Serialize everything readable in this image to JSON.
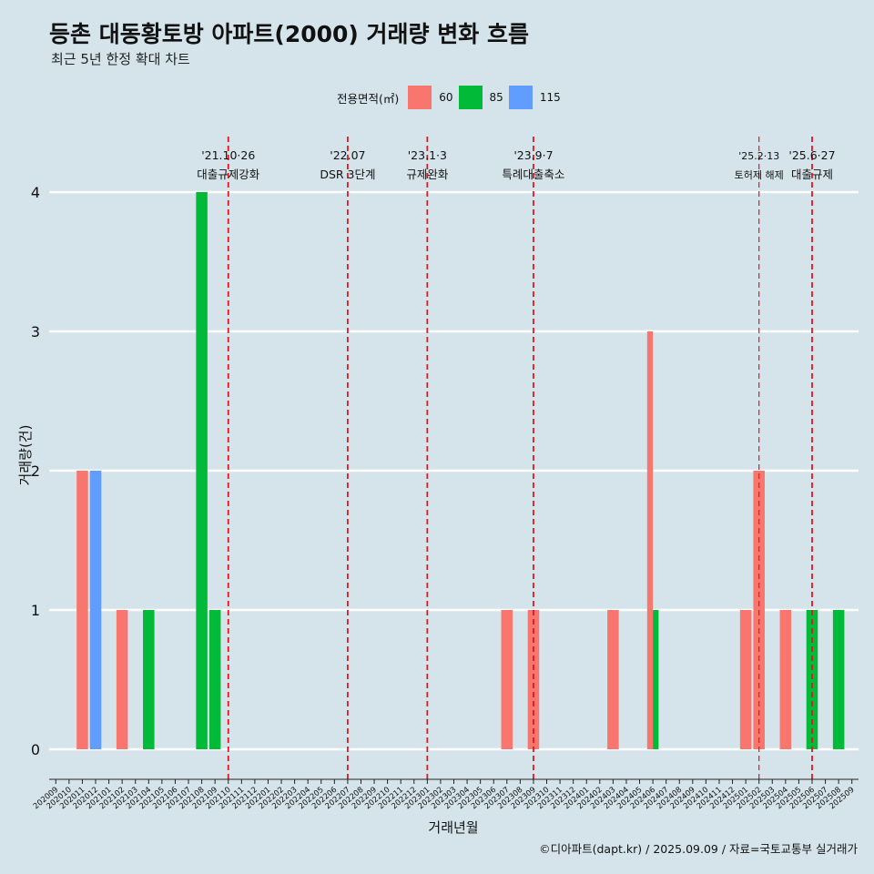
{
  "title": "등촌 대동황토방 아파트(2000) 거래량 변화 흐름",
  "subtitle": "최근 5년 한정 확대 차트",
  "credit": "©디아파트(dapt.kr) / 2025.09.09 / 자료=국토교통부 실거래가",
  "legend": {
    "title": "전용면적(㎡)",
    "items": [
      {
        "label": "60",
        "color": "#f8766d"
      },
      {
        "label": "85",
        "color": "#00ba38"
      },
      {
        "label": "115",
        "color": "#619cff"
      }
    ]
  },
  "chart_data": {
    "type": "bar",
    "title": "등촌 대동황토방 아파트(2000) 거래량 변화 흐름",
    "xlabel": "거래년월",
    "ylabel": "거래량(건)",
    "ylim": [
      0,
      4
    ],
    "yticks": [
      0,
      1,
      2,
      3,
      4
    ],
    "categories": [
      "202009",
      "202010",
      "202011",
      "202012",
      "202101",
      "202102",
      "202103",
      "202104",
      "202105",
      "202106",
      "202107",
      "202108",
      "202109",
      "202110",
      "202111",
      "202112",
      "202201",
      "202202",
      "202203",
      "202204",
      "202205",
      "202206",
      "202207",
      "202208",
      "202209",
      "202210",
      "202211",
      "202212",
      "202301",
      "202302",
      "202303",
      "202304",
      "202305",
      "202306",
      "202307",
      "202308",
      "202309",
      "202310",
      "202311",
      "202312",
      "202401",
      "202402",
      "202403",
      "202404",
      "202405",
      "202406",
      "202407",
      "202408",
      "202409",
      "202410",
      "202411",
      "202412",
      "202501",
      "202502",
      "202503",
      "202504",
      "202505",
      "202506",
      "202507",
      "202508",
      "202509"
    ],
    "series": [
      {
        "name": "60",
        "color": "#f8766d",
        "points": [
          {
            "x": "202011",
            "y": 2
          },
          {
            "x": "202102",
            "y": 1
          },
          {
            "x": "202307",
            "y": 1
          },
          {
            "x": "202309",
            "y": 1
          },
          {
            "x": "202403",
            "y": 1
          },
          {
            "x": "202406",
            "y": 3
          },
          {
            "x": "202501",
            "y": 1
          },
          {
            "x": "202502",
            "y": 2
          },
          {
            "x": "202504",
            "y": 1
          }
        ]
      },
      {
        "name": "85",
        "color": "#00ba38",
        "points": [
          {
            "x": "202104",
            "y": 1
          },
          {
            "x": "202108",
            "y": 4
          },
          {
            "x": "202109",
            "y": 1
          },
          {
            "x": "202406",
            "y": 1
          },
          {
            "x": "202506",
            "y": 1
          },
          {
            "x": "202508",
            "y": 1
          }
        ]
      },
      {
        "name": "115",
        "color": "#619cff",
        "points": [
          {
            "x": "202012",
            "y": 2
          }
        ]
      }
    ],
    "bar_groups": [
      {
        "x": "202011",
        "segs": [
          {
            "s": "60",
            "y": 2
          }
        ]
      },
      {
        "x": "202012",
        "segs": [
          {
            "s": "115",
            "y": 2
          }
        ]
      },
      {
        "x": "202102",
        "segs": [
          {
            "s": "60",
            "y": 1
          }
        ]
      },
      {
        "x": "202104",
        "segs": [
          {
            "s": "85",
            "y": 1
          }
        ]
      },
      {
        "x": "202108",
        "segs": [
          {
            "s": "85",
            "y": 4
          }
        ]
      },
      {
        "x": "202109",
        "segs": [
          {
            "s": "85",
            "y": 1
          }
        ]
      },
      {
        "x": "202307",
        "segs": [
          {
            "s": "60",
            "y": 1
          }
        ]
      },
      {
        "x": "202309",
        "segs": [
          {
            "s": "60",
            "y": 1
          }
        ]
      },
      {
        "x": "202403",
        "segs": [
          {
            "s": "60",
            "y": 1
          }
        ]
      },
      {
        "x": "202406",
        "segs": [
          {
            "s": "60",
            "y": 3
          },
          {
            "s": "85",
            "y": 1
          }
        ]
      },
      {
        "x": "202501",
        "segs": [
          {
            "s": "60",
            "y": 1
          }
        ]
      },
      {
        "x": "202502",
        "segs": [
          {
            "s": "60",
            "y": 2
          }
        ]
      },
      {
        "x": "202504",
        "segs": [
          {
            "s": "60",
            "y": 1
          }
        ]
      },
      {
        "x": "202506",
        "segs": [
          {
            "s": "85",
            "y": 1
          }
        ]
      },
      {
        "x": "202508",
        "segs": [
          {
            "s": "85",
            "y": 1
          }
        ]
      }
    ],
    "annotations": [
      {
        "x": "202110",
        "date": "'21.10·26",
        "text": "대출규제강화"
      },
      {
        "x": "202207",
        "date": "'22.07",
        "text": "DSR 3단계"
      },
      {
        "x": "202301",
        "date": "'23.1·3",
        "text": "규제완화"
      },
      {
        "x": "202309",
        "date": "'23.9·7",
        "text": "특례대출축소"
      },
      {
        "x": "202502",
        "date": "'25.2·13",
        "text": "토허제 해제"
      },
      {
        "x": "202506",
        "date": "'25.6·27",
        "text": "대출규제"
      }
    ]
  }
}
